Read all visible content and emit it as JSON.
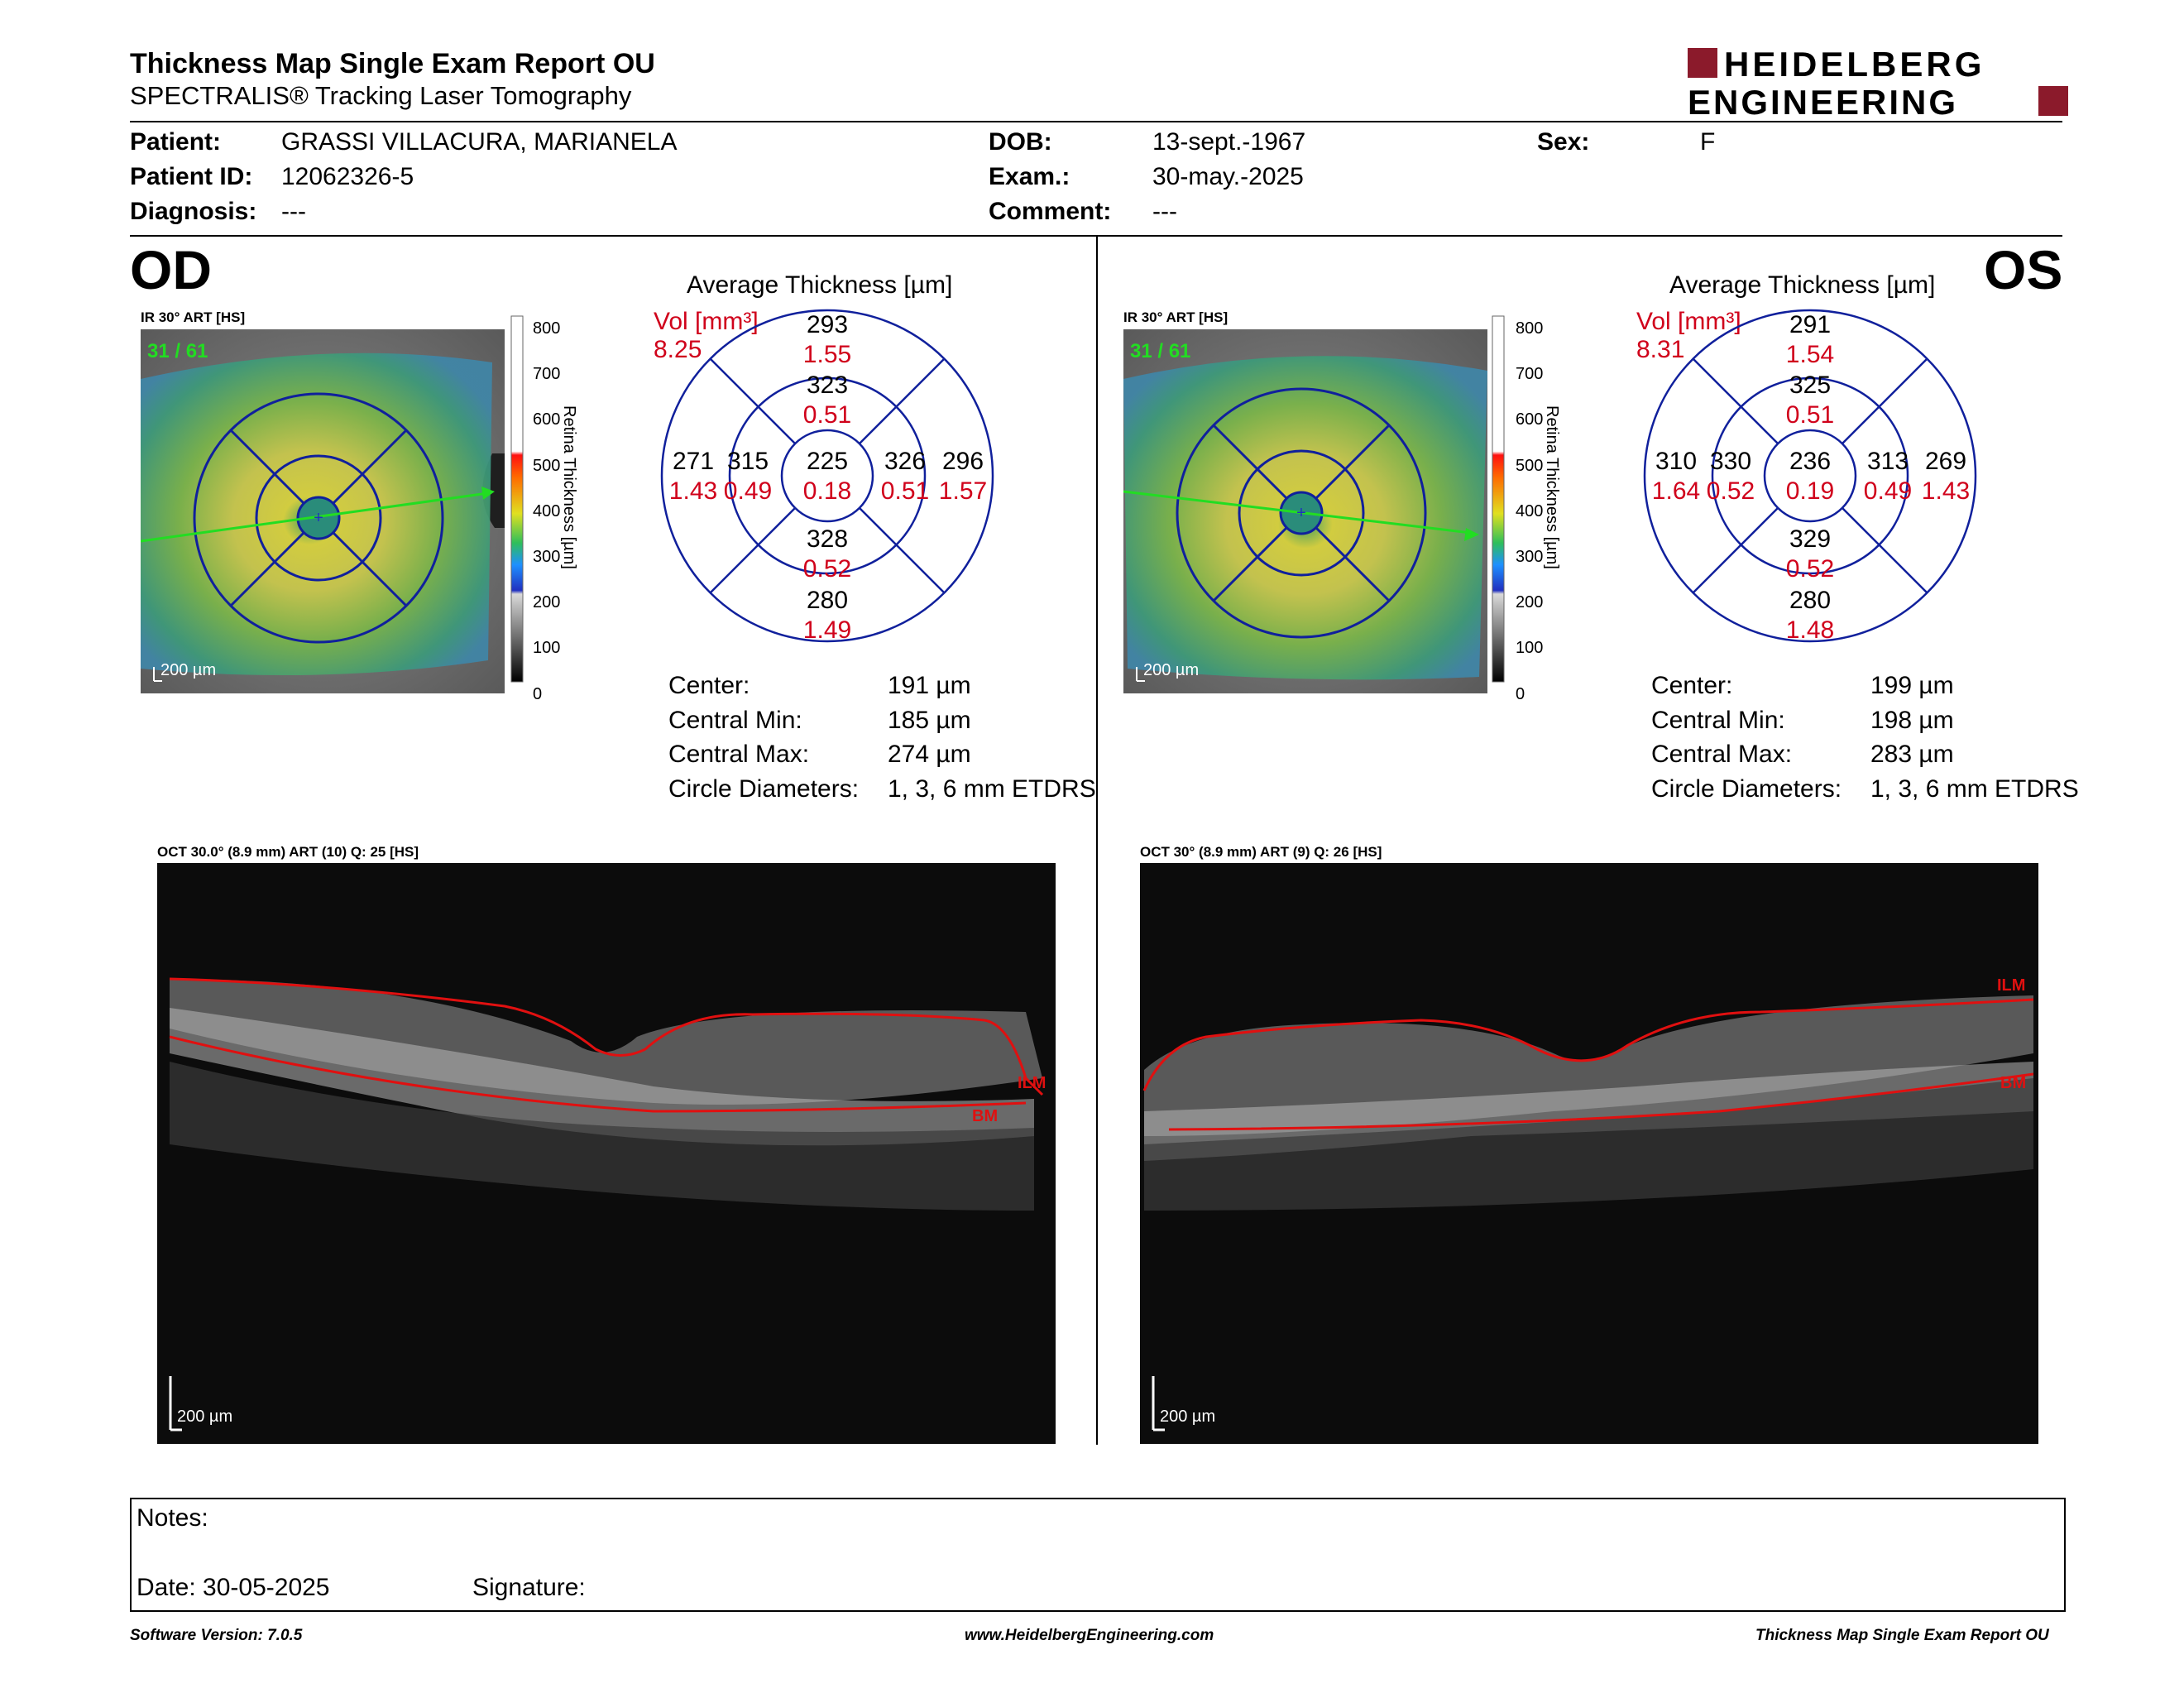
{
  "report": {
    "title": "Thickness Map Single Exam Report OU",
    "subtitle": "SPECTRALIS® Tracking Laser Tomography"
  },
  "brand": {
    "line1": "HEIDELBERG",
    "line2": "ENGINEERING",
    "color": "#8b1a2b"
  },
  "patient": {
    "patient_label": "Patient:",
    "patient_value": "GRASSI VILLACURA, MARIANELA",
    "id_label": "Patient ID:",
    "id_value": "12062326-5",
    "diagnosis_label": "Diagnosis:",
    "diagnosis_value": "---",
    "dob_label": "DOB:",
    "dob_value": "13-sept.-1967",
    "exam_label": "Exam.:",
    "exam_value": "30-may.-2025",
    "comment_label": "Comment:",
    "comment_value": "---",
    "sex_label": "Sex:",
    "sex_value": "F"
  },
  "colorbar": {
    "ticks": [
      "800",
      "700",
      "600",
      "500",
      "400",
      "300",
      "200",
      "100",
      "0"
    ],
    "label": "Retina Thickness [µm]"
  },
  "od": {
    "eye": "OD",
    "ir_label": "IR 30° ART [HS]",
    "frames": "31 / 61",
    "scale": "200 µm",
    "avg_title": "Average Thickness [µm]",
    "vol_label": "Vol [mm³]",
    "vol_total": "8.25",
    "sectors": {
      "center": {
        "t": "225",
        "v": "0.18"
      },
      "inner_sup": {
        "t": "323",
        "v": "0.51"
      },
      "inner_inf": {
        "t": "328",
        "v": "0.52"
      },
      "inner_left": {
        "t": "315",
        "v": "0.49"
      },
      "inner_right": {
        "t": "326",
        "v": "0.51"
      },
      "outer_sup": {
        "t": "293",
        "v": "1.55"
      },
      "outer_inf": {
        "t": "280",
        "v": "1.49"
      },
      "outer_left": {
        "t": "271",
        "v": "1.43"
      },
      "outer_right": {
        "t": "296",
        "v": "1.57"
      }
    },
    "stats": [
      {
        "label": "Center:",
        "value": "191 µm"
      },
      {
        "label": "Central Min:",
        "value": "185 µm"
      },
      {
        "label": "Central Max:",
        "value": "274 µm"
      },
      {
        "label": "Circle Diameters:",
        "value": "1, 3, 6 mm ETDRS"
      }
    ],
    "oct_label": "OCT 30.0° (8.9 mm) ART (10) Q: 25 [HS]",
    "oct_scale": "200 µm",
    "ilm": "ILM",
    "bm": "BM"
  },
  "os": {
    "eye": "OS",
    "ir_label": "IR 30° ART [HS]",
    "frames": "31 / 61",
    "scale": "200 µm",
    "avg_title": "Average Thickness [µm]",
    "vol_label": "Vol [mm³]",
    "vol_total": "8.31",
    "sectors": {
      "center": {
        "t": "236",
        "v": "0.19"
      },
      "inner_sup": {
        "t": "325",
        "v": "0.51"
      },
      "inner_inf": {
        "t": "329",
        "v": "0.52"
      },
      "inner_left": {
        "t": "330",
        "v": "0.52"
      },
      "inner_right": {
        "t": "313",
        "v": "0.49"
      },
      "outer_sup": {
        "t": "291",
        "v": "1.54"
      },
      "outer_inf": {
        "t": "280",
        "v": "1.48"
      },
      "outer_left": {
        "t": "310",
        "v": "1.64"
      },
      "outer_right": {
        "t": "269",
        "v": "1.43"
      }
    },
    "stats": [
      {
        "label": "Center:",
        "value": "199 µm"
      },
      {
        "label": "Central Min:",
        "value": "198 µm"
      },
      {
        "label": "Central Max:",
        "value": "283 µm"
      },
      {
        "label": "Circle Diameters:",
        "value": "1, 3, 6 mm ETDRS"
      }
    ],
    "oct_label": "OCT 30° (8.9 mm) ART (9) Q: 26 [HS]",
    "oct_scale": "200 µm",
    "ilm": "ILM",
    "bm": "BM"
  },
  "notes": {
    "notes_label": "Notes:",
    "date_label": "Date: 30-05-2025",
    "signature_label": "Signature:"
  },
  "footer": {
    "left": "Software Version: 7.0.5",
    "center": "www.HeidelbergEngineering.com",
    "right": "Thickness Map Single Exam Report OU"
  }
}
